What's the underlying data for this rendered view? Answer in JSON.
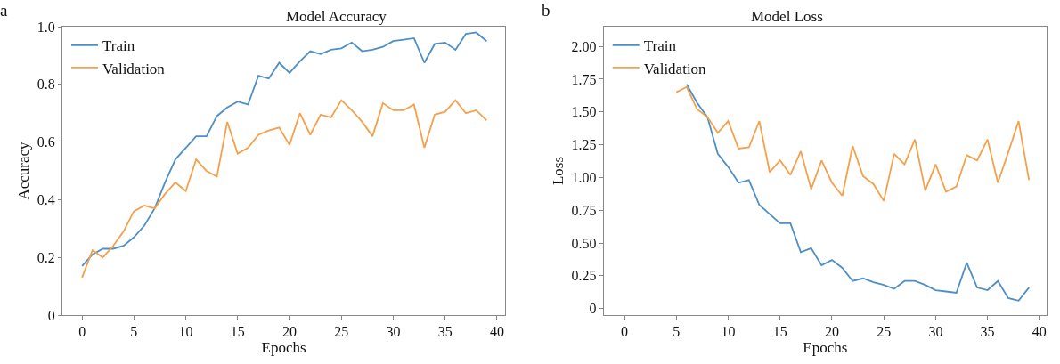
{
  "chart_data": [
    {
      "type": "line",
      "title": "Model Accuracy",
      "xlabel": "Epochs",
      "ylabel": "Accuracy",
      "annotations": [
        "a"
      ],
      "x": [
        0,
        1,
        2,
        3,
        4,
        5,
        6,
        7,
        8,
        9,
        10,
        11,
        12,
        13,
        14,
        15,
        16,
        17,
        18,
        19,
        20,
        21,
        22,
        23,
        24,
        25,
        26,
        27,
        28,
        29,
        30,
        31,
        32,
        33,
        34,
        35,
        36,
        37,
        38,
        39
      ],
      "series": [
        {
          "name": "Train",
          "color": "#4e8fc5",
          "values": [
            0.17,
            0.21,
            0.23,
            0.23,
            0.24,
            0.27,
            0.31,
            0.37,
            0.46,
            0.54,
            0.58,
            0.62,
            0.62,
            0.69,
            0.72,
            0.74,
            0.73,
            0.83,
            0.82,
            0.875,
            0.84,
            0.88,
            0.915,
            0.905,
            0.92,
            0.925,
            0.945,
            0.915,
            0.92,
            0.93,
            0.95,
            0.955,
            0.96,
            0.875,
            0.94,
            0.945,
            0.92,
            0.975,
            0.98,
            0.95
          ]
        },
        {
          "name": "Validation",
          "color": "#f5a04a",
          "values": [
            0.13,
            0.225,
            0.2,
            0.24,
            0.29,
            0.36,
            0.38,
            0.37,
            0.42,
            0.46,
            0.43,
            0.54,
            0.5,
            0.48,
            0.67,
            0.56,
            0.58,
            0.625,
            0.64,
            0.65,
            0.59,
            0.7,
            0.625,
            0.695,
            0.685,
            0.745,
            0.71,
            0.67,
            0.62,
            0.735,
            0.71,
            0.71,
            0.73,
            0.58,
            0.695,
            0.705,
            0.745,
            0.7,
            0.71,
            0.675
          ]
        }
      ],
      "xlim": [
        -1.9,
        40.8
      ],
      "xticks": [
        0,
        5,
        10,
        15,
        20,
        25,
        30,
        35,
        40
      ],
      "ylim": [
        0,
        1.0
      ],
      "yticks": [
        0,
        0.2,
        0.4,
        0.6,
        0.8,
        {
          "value": 1.0,
          "label": "1.0"
        }
      ],
      "legend": "top left",
      "marker": "none",
      "line_style": "solid"
    },
    {
      "type": "line",
      "title": "Model Loss",
      "xlabel": "Epochs",
      "ylabel": "Loss",
      "annotations": [
        "b"
      ],
      "series": [
        {
          "name": "Train",
          "color": "#4e8fc5",
          "x": [
            6,
            7,
            8,
            9,
            10,
            11,
            12,
            13,
            14,
            15,
            16,
            17,
            18,
            19,
            20,
            21,
            22,
            23,
            24,
            25,
            26,
            27,
            28,
            29,
            30,
            31,
            32,
            33,
            34,
            35,
            36,
            37,
            38,
            39
          ],
          "values": [
            1.71,
            1.57,
            1.46,
            1.18,
            1.08,
            0.96,
            0.98,
            0.79,
            0.72,
            0.65,
            0.65,
            0.43,
            0.46,
            0.33,
            0.37,
            0.31,
            0.21,
            0.23,
            0.2,
            0.18,
            0.15,
            0.21,
            0.21,
            0.18,
            0.14,
            0.13,
            0.12,
            0.35,
            0.16,
            0.14,
            0.21,
            0.08,
            0.06,
            0.16
          ]
        },
        {
          "name": "Validation",
          "color": "#f5a04a",
          "x": [
            5,
            6,
            7,
            8,
            9,
            10,
            11,
            12,
            13,
            14,
            15,
            16,
            17,
            18,
            19,
            20,
            21,
            22,
            23,
            24,
            25,
            26,
            27,
            28,
            29,
            30,
            31,
            32,
            33,
            34,
            35,
            36,
            37,
            38,
            39
          ],
          "values": [
            1.65,
            1.69,
            1.52,
            1.46,
            1.34,
            1.43,
            1.22,
            1.23,
            1.43,
            1.04,
            1.13,
            1.02,
            1.2,
            0.91,
            1.13,
            0.96,
            0.86,
            1.24,
            1.01,
            0.95,
            0.82,
            1.18,
            1.1,
            1.29,
            0.9,
            1.1,
            0.89,
            0.93,
            1.17,
            1.13,
            1.29,
            0.96,
            1.19,
            1.43,
            0.98
          ]
        }
      ],
      "xlim": [
        -2.0,
        40.7
      ],
      "xticks": [
        0,
        5,
        10,
        15,
        20,
        25,
        30,
        35,
        40
      ],
      "ylim": [
        -0.05,
        2.15
      ],
      "yticks": [
        0,
        {
          "value": 0.25,
          "label": "0.25"
        },
        {
          "value": 0.5,
          "label": "0.50"
        },
        {
          "value": 0.75,
          "label": "0.75"
        },
        {
          "value": 1.0,
          "label": "1.00"
        },
        {
          "value": 1.25,
          "label": "1.25"
        },
        {
          "value": 1.5,
          "label": "1.50"
        },
        {
          "value": 1.75,
          "label": "1.75"
        },
        {
          "value": 2.0,
          "label": "2.00"
        }
      ],
      "legend": "top left",
      "marker": "none",
      "line_style": "solid"
    }
  ]
}
